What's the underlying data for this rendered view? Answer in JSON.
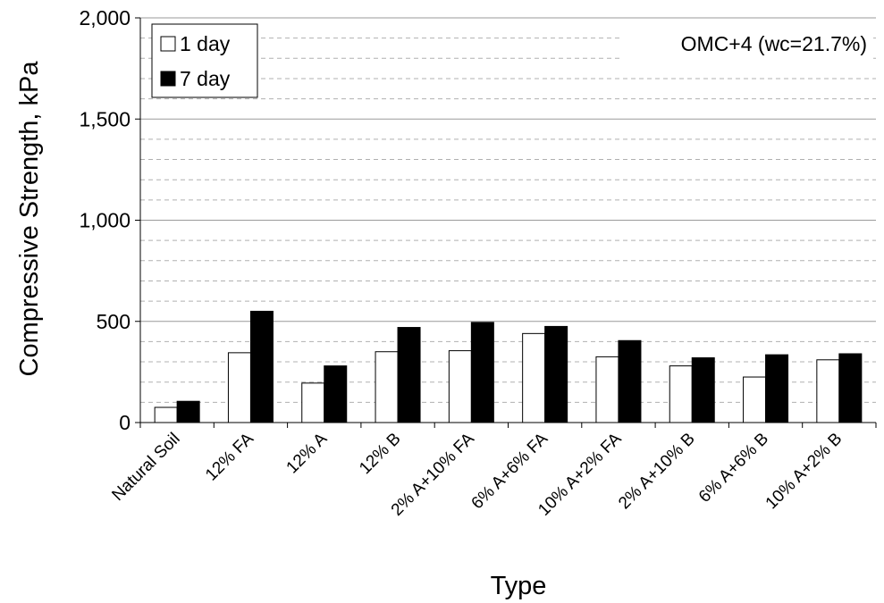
{
  "chart_data": {
    "type": "bar",
    "title": "",
    "annotation": "OMC+4 (wc=21.7%)",
    "xlabel": "Type",
    "ylabel": "Compressive Strength, kPa",
    "ylim": [
      0,
      2000
    ],
    "y_ticks": [
      0,
      500,
      1000,
      1500,
      2000
    ],
    "y_tick_labels": [
      "0",
      "500",
      "1,000",
      "1,500",
      "2,000"
    ],
    "minor_grid_step": 100,
    "categories": [
      "Natural Soil",
      "12% FA",
      "12% A",
      "12% B",
      "2% A+10% FA",
      "6% A+6% FA",
      "10% A+2% FA",
      "2% A+10% B",
      "6% A+6% B",
      "10% A+2% B"
    ],
    "series": [
      {
        "name": "1 day",
        "fill": "#ffffff",
        "stroke": "#000000",
        "values": [
          75,
          345,
          195,
          350,
          355,
          440,
          325,
          280,
          225,
          310
        ]
      },
      {
        "name": "7 day",
        "fill": "#000000",
        "stroke": "#000000",
        "values": [
          105,
          550,
          280,
          470,
          495,
          475,
          405,
          320,
          335,
          340
        ]
      }
    ],
    "legend_position": "top-left",
    "grid": "horizontal dashed minor, solid major"
  }
}
